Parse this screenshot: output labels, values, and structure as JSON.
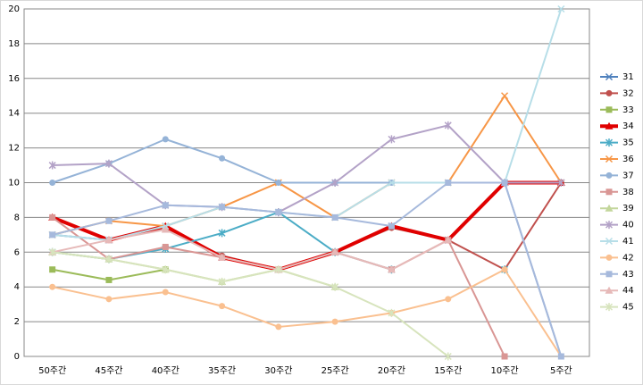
{
  "chart_data": {
    "type": "line",
    "categories": [
      "50주간",
      "45주간",
      "40주간",
      "35주간",
      "30주간",
      "25주간",
      "20주간",
      "15주간",
      "10주간",
      "5주간"
    ],
    "ylim": [
      0,
      20
    ],
    "yticks": [
      0,
      2,
      4,
      6,
      8,
      10,
      12,
      14,
      16,
      18,
      20
    ],
    "grid": true,
    "series": [
      {
        "name": "31",
        "color": "#4f81bd",
        "values": [
          7,
          6.7,
          7.5,
          5.7,
          5,
          6,
          7.5,
          6.7,
          10,
          10
        ]
      },
      {
        "name": "32",
        "color": "#c0504d",
        "values": [
          8,
          6.7,
          7.4,
          5.8,
          5,
          6,
          7.4,
          6.7,
          5,
          10
        ]
      },
      {
        "name": "33",
        "color": "#9bbb59",
        "values": [
          5,
          4.4,
          5,
          null,
          null,
          null,
          null,
          null,
          null,
          null
        ]
      },
      {
        "name": "34",
        "color": "#e00000",
        "values": [
          8,
          6.7,
          7.5,
          5.7,
          5,
          6,
          7.5,
          6.7,
          10,
          10
        ]
      },
      {
        "name": "35",
        "color": "#4bacc6",
        "values": [
          6,
          5.6,
          6.2,
          7.1,
          8.3,
          6,
          5,
          null,
          5,
          null
        ]
      },
      {
        "name": "36",
        "color": "#f79646",
        "values": [
          7,
          7.8,
          7.5,
          8.6,
          10,
          8,
          10,
          10,
          15,
          10
        ]
      },
      {
        "name": "37",
        "color": "#95b3d7",
        "values": [
          10,
          11.1,
          12.5,
          11.4,
          10,
          10,
          10,
          10,
          10,
          0
        ]
      },
      {
        "name": "38",
        "color": "#d99694",
        "values": [
          8,
          5.6,
          6.3,
          5.7,
          5,
          6,
          5,
          6.7,
          0,
          null
        ]
      },
      {
        "name": "39",
        "color": "#c3d69b",
        "values": [
          6,
          5.6,
          5,
          4.3,
          5,
          4,
          null,
          null,
          null,
          null
        ]
      },
      {
        "name": "40",
        "color": "#b3a2c7",
        "values": [
          11,
          11.1,
          8.7,
          8.6,
          8.3,
          10,
          12.5,
          13.3,
          10,
          10
        ]
      },
      {
        "name": "41",
        "color": "#b7dee8",
        "values": [
          7,
          6.7,
          7.5,
          8.6,
          8.3,
          8,
          10,
          10,
          10,
          20
        ]
      },
      {
        "name": "42",
        "color": "#fac090",
        "values": [
          4,
          3.3,
          3.7,
          2.9,
          1.7,
          2,
          2.5,
          3.3,
          5,
          0
        ]
      },
      {
        "name": "43",
        "color": "#a6b9dc",
        "values": [
          7,
          7.8,
          8.7,
          8.6,
          8.3,
          8,
          7.5,
          10,
          10,
          0
        ]
      },
      {
        "name": "44",
        "color": "#e6b9b8",
        "values": [
          6,
          6.7,
          7.3,
          5.7,
          5,
          6,
          5,
          6.7,
          null,
          null
        ]
      },
      {
        "name": "45",
        "color": "#d7e4bd",
        "values": [
          6,
          5.6,
          5,
          4.3,
          5,
          4,
          2.5,
          0,
          null,
          null
        ]
      }
    ]
  }
}
